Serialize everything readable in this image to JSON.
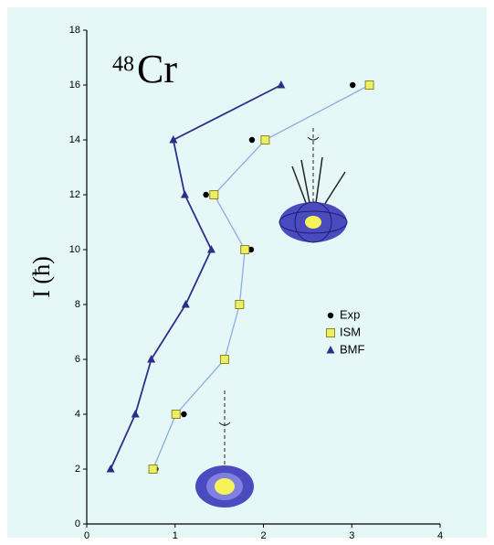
{
  "chart_data": {
    "type": "line",
    "title_prefix": "48",
    "title": "Cr",
    "y_label": "I (ħ)",
    "xlim": [
      0,
      4
    ],
    "xticks": [
      0,
      1,
      2,
      3,
      4
    ],
    "ylim": [
      0,
      18
    ],
    "yticks": [
      0,
      2,
      4,
      6,
      8,
      10,
      12,
      14,
      16,
      18
    ],
    "legend": "right",
    "series": [
      {
        "name": "Exp",
        "color": "#000000",
        "marker": "circle",
        "line": false,
        "x": [
          0.78,
          1.1,
          1.58,
          1.73,
          1.86,
          1.35,
          1.87,
          3.01
        ],
        "values": [
          2,
          4,
          6,
          8,
          10,
          12,
          14,
          16
        ]
      },
      {
        "name": "ISM",
        "color": "#eeee66",
        "line_color": "#8aaee6",
        "marker": "square",
        "line": true,
        "x": [
          0.75,
          1.01,
          1.56,
          1.73,
          1.79,
          1.44,
          2.02,
          3.2
        ],
        "values": [
          2,
          4,
          6,
          8,
          10,
          12,
          14,
          16
        ]
      },
      {
        "name": "BMF",
        "color": "#2b2f8a",
        "line_color": "#2b2f8a",
        "marker": "triangle",
        "line": true,
        "x": [
          0.27,
          0.55,
          0.73,
          1.12,
          1.41,
          1.11,
          0.98,
          2.2
        ],
        "values": [
          2,
          4,
          6,
          8,
          10,
          12,
          14,
          16
        ]
      }
    ]
  }
}
